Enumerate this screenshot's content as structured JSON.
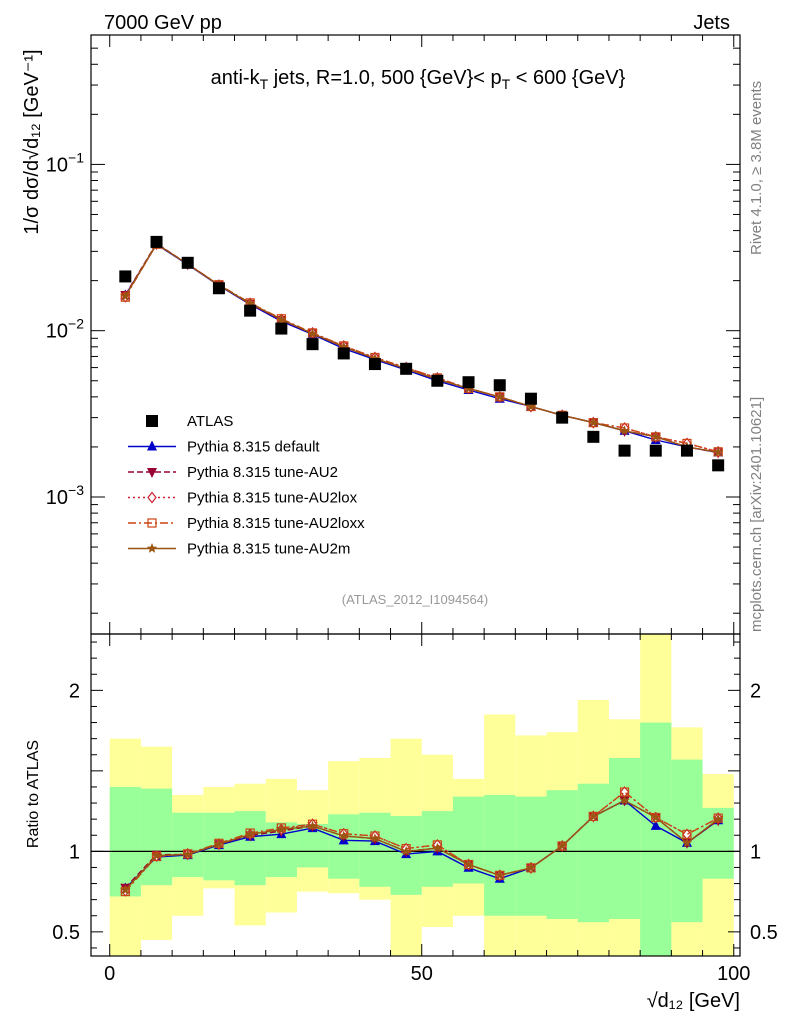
{
  "header": {
    "left": "7000 GeV pp",
    "right": "Jets"
  },
  "title_parts": {
    "prefix": "anti-k",
    "sub1": "T",
    "mid": " jets, R=1.0, 500 {GeV}< p",
    "sub2": "T",
    "suffix": " < 600 {GeV}"
  },
  "axis_labels": {
    "main_y": "1/σ dσ/d√d₁₂ [GeV⁻¹]",
    "ratio_y": "Ratio to ATLAS",
    "x": "√d₁₂ [GeV]"
  },
  "side_text": {
    "rivet": "Rivet 4.1.0, ≥ 3.8M events",
    "mcplots": "mcplots.cern.ch [arXiv:2401.10621]"
  },
  "reference": "(ATLAS_2012_I1094564)",
  "main_y_ticks": [
    {
      "value": 0.1,
      "base": "10",
      "exp": "−1"
    },
    {
      "value": 0.01,
      "base": "10",
      "exp": "−2"
    },
    {
      "value": 0.001,
      "base": "10",
      "exp": "−3"
    }
  ],
  "ratio_y_ticks": [
    {
      "value": 0.5,
      "label": "0.5"
    },
    {
      "value": 1,
      "label": "1"
    },
    {
      "value": 2,
      "label": "2"
    }
  ],
  "x_ticks": [
    {
      "value": 0,
      "label": "0"
    },
    {
      "value": 50,
      "label": "50"
    },
    {
      "value": 100,
      "label": "100"
    }
  ],
  "chart_data": {
    "type": "scatter",
    "title": "anti-kT jets, R=1.0, 500 {GeV}< pT < 600 {GeV}",
    "xlabel": "√d12 [GeV]",
    "ylabel": "1/σ dσ/d√d12 [GeV^-1]",
    "xlim": [
      -3,
      101
    ],
    "ylim_main": [
      0.00015,
      0.6
    ],
    "ylim_ratio": [
      0.35,
      2.35
    ],
    "yscale_main": "log",
    "legend_position": "lower-left",
    "bin_edges": [
      0,
      5,
      10,
      15,
      20,
      25,
      30,
      35,
      40,
      45,
      50,
      55,
      60,
      65,
      70,
      75,
      80,
      85,
      90,
      95,
      100
    ],
    "x": [
      2.5,
      7.5,
      12.5,
      17.5,
      22.5,
      27.5,
      32.5,
      37.5,
      42.5,
      47.5,
      52.5,
      57.5,
      62.5,
      67.5,
      72.5,
      77.5,
      82.5,
      87.5,
      92.5,
      97.5
    ],
    "data": {
      "name": "ATLAS",
      "values": [
        0.0212,
        0.0342,
        0.0256,
        0.018,
        0.0132,
        0.0103,
        0.0083,
        0.0073,
        0.0063,
        0.0059,
        0.005,
        0.0049,
        0.0047,
        0.0039,
        0.003,
        0.0023,
        0.0019,
        0.0019,
        0.0019,
        0.00155
      ],
      "band_inner": [
        [
          0.72,
          1.4
        ],
        [
          0.79,
          1.39
        ],
        [
          0.84,
          1.24
        ],
        [
          0.82,
          1.24
        ],
        [
          0.79,
          1.25
        ],
        [
          0.84,
          1.18
        ],
        [
          0.9,
          1.17
        ],
        [
          0.83,
          1.23
        ],
        [
          0.78,
          1.24
        ],
        [
          0.73,
          1.22
        ],
        [
          0.78,
          1.25
        ],
        [
          0.8,
          1.34
        ],
        [
          0.6,
          1.35
        ],
        [
          0.6,
          1.34
        ],
        [
          0.58,
          1.38
        ],
        [
          0.56,
          1.42
        ],
        [
          0.58,
          1.58
        ],
        [
          0.35,
          1.8
        ],
        [
          0.56,
          1.57
        ],
        [
          0.83,
          1.27
        ]
      ],
      "band_outer": [
        [
          0.35,
          1.7
        ],
        [
          0.45,
          1.65
        ],
        [
          0.6,
          1.35
        ],
        [
          0.77,
          1.4
        ],
        [
          0.54,
          1.42
        ],
        [
          0.62,
          1.45
        ],
        [
          0.75,
          1.38
        ],
        [
          0.74,
          1.56
        ],
        [
          0.7,
          1.58
        ],
        [
          0.35,
          1.7
        ],
        [
          0.53,
          1.6
        ],
        [
          0.6,
          1.45
        ],
        [
          0.35,
          1.85
        ],
        [
          0.35,
          1.72
        ],
        [
          0.35,
          1.74
        ],
        [
          0.35,
          1.94
        ],
        [
          0.35,
          1.82
        ],
        [
          0.35,
          2.35
        ],
        [
          0.35,
          1.77
        ],
        [
          0.35,
          1.48
        ]
      ]
    },
    "series": [
      {
        "name": "Pythia 8.315 default",
        "color": "#0000cc",
        "marker": "triangle-up",
        "dash": "",
        "values": [
          0.0163,
          0.033,
          0.025,
          0.0187,
          0.0144,
          0.0114,
          0.0095,
          0.0078,
          0.0067,
          0.0058,
          0.005,
          0.0044,
          0.0039,
          0.0035,
          0.0031,
          0.0028,
          0.0025,
          0.0022,
          0.002,
          0.00185
        ]
      },
      {
        "name": "Pythia 8.315 tune-AU2",
        "color": "#990033",
        "marker": "triangle-down",
        "dash": "6,3",
        "values": [
          0.0164,
          0.0335,
          0.0251,
          0.0188,
          0.0145,
          0.0116,
          0.0096,
          0.008,
          0.0068,
          0.0059,
          0.0051,
          0.0045,
          0.004,
          0.0035,
          0.0031,
          0.0028,
          0.0025,
          0.0023,
          0.002,
          0.00185
        ]
      },
      {
        "name": "Pythia 8.315 tune-AU2lox",
        "color": "#cc2233",
        "marker": "diamond",
        "dash": "2,3",
        "values": [
          0.016,
          0.0332,
          0.0252,
          0.0188,
          0.0146,
          0.0117,
          0.0097,
          0.0081,
          0.0069,
          0.006,
          0.0052,
          0.0045,
          0.004,
          0.0035,
          0.0031,
          0.0028,
          0.0026,
          0.0023,
          0.0021,
          0.00187
        ]
      },
      {
        "name": "Pythia 8.315 tune-AU2loxx",
        "color": "#cc4411",
        "marker": "square",
        "dash": "8,3,2,3",
        "values": [
          0.0159,
          0.0331,
          0.0252,
          0.0189,
          0.0147,
          0.0118,
          0.0097,
          0.0081,
          0.0069,
          0.006,
          0.0052,
          0.0045,
          0.004,
          0.0035,
          0.0031,
          0.0028,
          0.0026,
          0.0023,
          0.0021,
          0.00187
        ]
      },
      {
        "name": "Pythia 8.315 tune-AU2m",
        "color": "#995511",
        "marker": "star",
        "dash": "",
        "values": [
          0.0161,
          0.0333,
          0.0251,
          0.0188,
          0.0146,
          0.0117,
          0.0096,
          0.008,
          0.0068,
          0.0059,
          0.0051,
          0.0045,
          0.004,
          0.0035,
          0.0031,
          0.0028,
          0.0025,
          0.0023,
          0.002,
          0.00186
        ]
      }
    ]
  }
}
